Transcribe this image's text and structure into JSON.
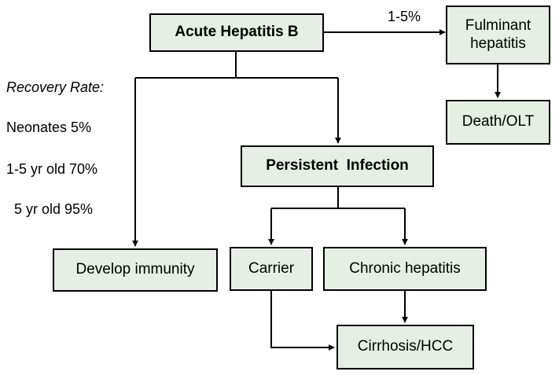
{
  "colors": {
    "box_fill": "#e6efe3",
    "line": "#000000"
  },
  "nodes": {
    "acute": "Acute Hepatitis B",
    "fulminant": "Fulminant hepatitis",
    "death": "Death/OLT",
    "persistent": "Persistent  Infection",
    "immunity": "Develop immunity",
    "carrier": "Carrier",
    "chronic": "Chronic hepatitis",
    "cirrhosis": "Cirrhosis/HCC"
  },
  "edge_label_fulminant": "1-5%",
  "recovery": {
    "title": "Recovery Rate:",
    "neonates": "Neonates 5%",
    "age_1_5": "1-5 yr old 70%",
    "age_5": "5 yr old 95%"
  }
}
